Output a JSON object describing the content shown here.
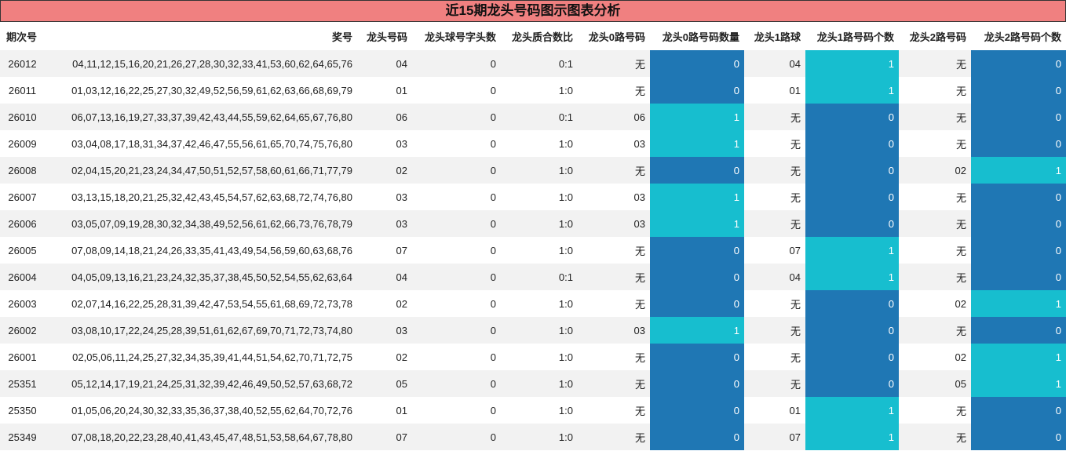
{
  "title": "近15期龙头号码图示图表分析",
  "table": {
    "headers": [
      "期次号",
      "奖号",
      "龙头号码",
      "龙头球号字头数",
      "龙头质合数比",
      "龙头0路号码",
      "龙头0路号码数量",
      "龙头1路球",
      "龙头1路号码个数",
      "龙头2路号码",
      "龙头2路号码个数"
    ],
    "rows": [
      [
        "26012",
        "04,11,12,15,16,20,21,26,27,28,30,32,33,41,53,60,62,64,65,76",
        "04",
        0,
        "0:1",
        "无",
        0,
        "04",
        1,
        "无",
        0
      ],
      [
        "26011",
        "01,03,12,16,22,25,27,30,32,49,52,56,59,61,62,63,66,68,69,79",
        "01",
        0,
        "1:0",
        "无",
        0,
        "01",
        1,
        "无",
        0
      ],
      [
        "26010",
        "06,07,13,16,19,27,33,37,39,42,43,44,55,59,62,64,65,67,76,80",
        "06",
        0,
        "0:1",
        "06",
        1,
        "无",
        0,
        "无",
        0
      ],
      [
        "26009",
        "03,04,08,17,18,31,34,37,42,46,47,55,56,61,65,70,74,75,76,80",
        "03",
        0,
        "1:0",
        "03",
        1,
        "无",
        0,
        "无",
        0
      ],
      [
        "26008",
        "02,04,15,20,21,23,24,34,47,50,51,52,57,58,60,61,66,71,77,79",
        "02",
        0,
        "1:0",
        "无",
        0,
        "无",
        0,
        "02",
        1
      ],
      [
        "26007",
        "03,13,15,18,20,21,25,32,42,43,45,54,57,62,63,68,72,74,76,80",
        "03",
        0,
        "1:0",
        "03",
        1,
        "无",
        0,
        "无",
        0
      ],
      [
        "26006",
        "03,05,07,09,19,28,30,32,34,38,49,52,56,61,62,66,73,76,78,79",
        "03",
        0,
        "1:0",
        "03",
        1,
        "无",
        0,
        "无",
        0
      ],
      [
        "26005",
        "07,08,09,14,18,21,24,26,33,35,41,43,49,54,56,59,60,63,68,76",
        "07",
        0,
        "1:0",
        "无",
        0,
        "07",
        1,
        "无",
        0
      ],
      [
        "26004",
        "04,05,09,13,16,21,23,24,32,35,37,38,45,50,52,54,55,62,63,64",
        "04",
        0,
        "0:1",
        "无",
        0,
        "04",
        1,
        "无",
        0
      ],
      [
        "26003",
        "02,07,14,16,22,25,28,31,39,42,47,53,54,55,61,68,69,72,73,78",
        "02",
        0,
        "1:0",
        "无",
        0,
        "无",
        0,
        "02",
        1
      ],
      [
        "26002",
        "03,08,10,17,22,24,25,28,39,51,61,62,67,69,70,71,72,73,74,80",
        "03",
        0,
        "1:0",
        "03",
        1,
        "无",
        0,
        "无",
        0
      ],
      [
        "26001",
        "02,05,06,11,24,25,27,32,34,35,39,41,44,51,54,62,70,71,72,75",
        "02",
        0,
        "1:0",
        "无",
        0,
        "无",
        0,
        "02",
        1
      ],
      [
        "25351",
        "05,12,14,17,19,21,24,25,31,32,39,42,46,49,50,52,57,63,68,72",
        "05",
        0,
        "1:0",
        "无",
        0,
        "无",
        0,
        "05",
        1
      ],
      [
        "25350",
        "01,05,06,20,24,30,32,33,35,36,37,38,40,52,55,62,64,70,72,76",
        "01",
        0,
        "1:0",
        "无",
        0,
        "01",
        1,
        "无",
        0
      ],
      [
        "25349",
        "07,08,18,20,22,23,28,40,41,43,45,47,48,51,53,58,64,67,78,80",
        "07",
        0,
        "1:0",
        "无",
        0,
        "07",
        1,
        "无",
        0
      ]
    ]
  }
}
